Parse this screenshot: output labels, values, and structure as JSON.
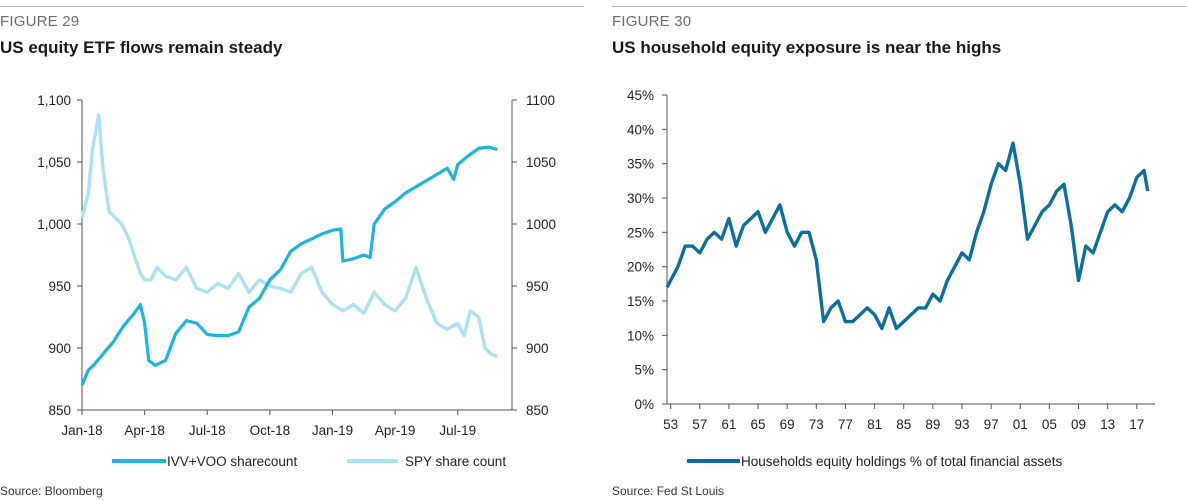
{
  "figures": [
    {
      "number": "FIGURE 29",
      "title": "US equity ETF flows remain steady",
      "source": "Source: Bloomberg"
    },
    {
      "number": "FIGURE 30",
      "title": "US household equity exposure is near the highs",
      "source": "Source: Fed St Louis"
    }
  ],
  "chart_data": [
    {
      "type": "line",
      "title": "US equity ETF flows remain steady",
      "x_tick_labels": [
        "Jan-18",
        "Apr-18",
        "Jul-18",
        "Oct-18",
        "Jan-19",
        "Apr-19",
        "Jul-19"
      ],
      "xlim": [
        0,
        20.6
      ],
      "y_left": {
        "ylim": [
          850,
          1100
        ],
        "ticks": [
          "850",
          "900",
          "950",
          "1,000",
          "1,050",
          "1,100"
        ]
      },
      "y_right": {
        "ylim": [
          850,
          1100
        ],
        "ticks": [
          "850",
          "900",
          "950",
          "1000",
          "1050",
          "1100"
        ]
      },
      "grid": false,
      "legend_position": "bottom",
      "series": [
        {
          "name": "IVV+VOO sharecount",
          "axis": "left",
          "color": "#1fb3dd",
          "x": [
            0,
            0.3,
            0.6,
            1.0,
            1.5,
            2.0,
            2.5,
            2.8,
            3.0,
            3.2,
            3.5,
            4.0,
            4.5,
            5.0,
            5.5,
            6.0,
            6.5,
            7.0,
            7.5,
            8.0,
            8.5,
            9.0,
            9.5,
            10.0,
            10.5,
            11.0,
            11.5,
            12.0,
            12.4,
            12.5,
            13.0,
            13.5,
            13.8,
            14.0,
            14.5,
            15.0,
            15.5,
            16.0,
            16.5,
            17.0,
            17.5,
            17.8,
            18.0,
            18.5,
            19.0,
            19.5,
            19.9
          ],
          "values": [
            870,
            882,
            887,
            895,
            905,
            918,
            928,
            935,
            920,
            890,
            886,
            890,
            912,
            922,
            920,
            911,
            910,
            910,
            913,
            933,
            940,
            955,
            963,
            978,
            984,
            988,
            992,
            995,
            996,
            970,
            972,
            975,
            973,
            1000,
            1012,
            1018,
            1025,
            1030,
            1035,
            1040,
            1045,
            1036,
            1048,
            1055,
            1061,
            1062,
            1060
          ]
        },
        {
          "name": "SPY share count",
          "axis": "right",
          "color": "#aee0f3",
          "x": [
            0,
            0.3,
            0.5,
            0.8,
            1.0,
            1.3,
            1.6,
            1.9,
            2.2,
            2.5,
            2.8,
            3.0,
            3.3,
            3.6,
            4.0,
            4.5,
            5.0,
            5.5,
            6.0,
            6.5,
            7.0,
            7.5,
            8.0,
            8.5,
            9.0,
            9.5,
            10.0,
            10.5,
            11.0,
            11.5,
            12.0,
            12.5,
            13.0,
            13.5,
            14.0,
            14.5,
            15.0,
            15.5,
            16.0,
            16.5,
            17.0,
            17.5,
            18.0,
            18.3,
            18.6,
            19.0,
            19.3,
            19.6,
            19.9
          ],
          "values": [
            1005,
            1025,
            1060,
            1088,
            1045,
            1010,
            1005,
            1000,
            990,
            975,
            960,
            955,
            955,
            965,
            958,
            955,
            965,
            948,
            945,
            952,
            948,
            960,
            945,
            955,
            950,
            948,
            945,
            960,
            965,
            945,
            935,
            930,
            935,
            928,
            945,
            935,
            930,
            940,
            965,
            940,
            920,
            915,
            920,
            910,
            930,
            925,
            900,
            895,
            893
          ]
        }
      ]
    },
    {
      "type": "line",
      "title": "US household equity exposure is near the highs",
      "x_tick_labels": [
        "53",
        "57",
        "61",
        "65",
        "69",
        "73",
        "77",
        "81",
        "85",
        "89",
        "93",
        "97",
        "01",
        "05",
        "09",
        "13",
        "17"
      ],
      "xlim": [
        1952.5,
        2019.5
      ],
      "ylim": [
        0,
        45
      ],
      "y_ticks": [
        "0%",
        "5%",
        "10%",
        "15%",
        "20%",
        "25%",
        "30%",
        "35%",
        "40%",
        "45%"
      ],
      "grid": false,
      "legend_position": "bottom",
      "series": [
        {
          "name": "Households equity holdings % of total financial assets",
          "color": "#0e6f9c",
          "x": [
            1952.5,
            1953,
            1954,
            1955,
            1956,
            1957,
            1958,
            1959,
            1960,
            1961,
            1962,
            1963,
            1964,
            1965,
            1966,
            1967,
            1968,
            1969,
            1970,
            1971,
            1972,
            1973,
            1974,
            1975,
            1976,
            1977,
            1978,
            1979,
            1980,
            1981,
            1982,
            1983,
            1984,
            1985,
            1986,
            1987,
            1988,
            1989,
            1990,
            1991,
            1992,
            1993,
            1994,
            1995,
            1996,
            1997,
            1998,
            1999,
            2000,
            2001,
            2002,
            2003,
            2004,
            2005,
            2006,
            2007,
            2008,
            2009,
            2010,
            2011,
            2012,
            2013,
            2014,
            2015,
            2016,
            2017,
            2018,
            2018.5
          ],
          "values": [
            17,
            18,
            20,
            23,
            23,
            22,
            24,
            25,
            24,
            27,
            23,
            26,
            27,
            28,
            25,
            27,
            29,
            25,
            23,
            25,
            25,
            21,
            12,
            14,
            15,
            12,
            12,
            13,
            14,
            13,
            11,
            14,
            11,
            12,
            13,
            14,
            14,
            16,
            15,
            18,
            20,
            22,
            21,
            25,
            28,
            32,
            35,
            34,
            38,
            32,
            24,
            26,
            28,
            29,
            31,
            32,
            26,
            18,
            23,
            22,
            25,
            28,
            29,
            28,
            30,
            33,
            34,
            31
          ]
        }
      ]
    }
  ]
}
